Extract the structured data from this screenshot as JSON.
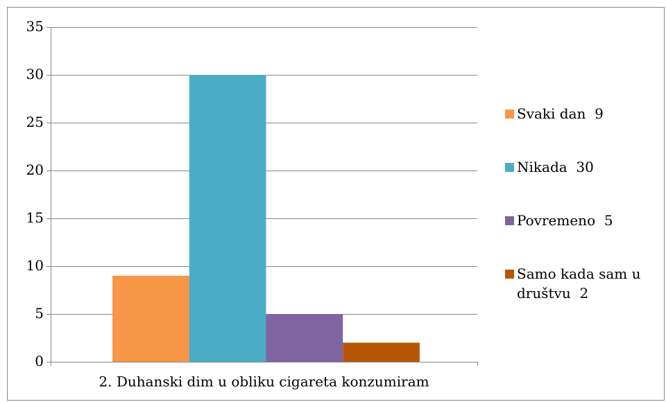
{
  "chart_data": {
    "type": "bar",
    "categories": [
      "2. Duhanski dim u obliku cigareta konzumiram"
    ],
    "series": [
      {
        "name": "Svaki dan  9",
        "color": "#f79646",
        "values": [
          9
        ]
      },
      {
        "name": "Nikada  30",
        "color": "#4bacc6",
        "values": [
          30
        ]
      },
      {
        "name": "Povremeno  5",
        "color": "#8064a2",
        "values": [
          5
        ]
      },
      {
        "name": "Samo kada sam u društvu  2",
        "color": "#b65708",
        "values": [
          2
        ]
      }
    ],
    "ylim": [
      0,
      35
    ],
    "yticks": [
      0,
      5,
      10,
      15,
      20,
      25,
      30,
      35
    ],
    "grid": true,
    "legend": "right"
  }
}
